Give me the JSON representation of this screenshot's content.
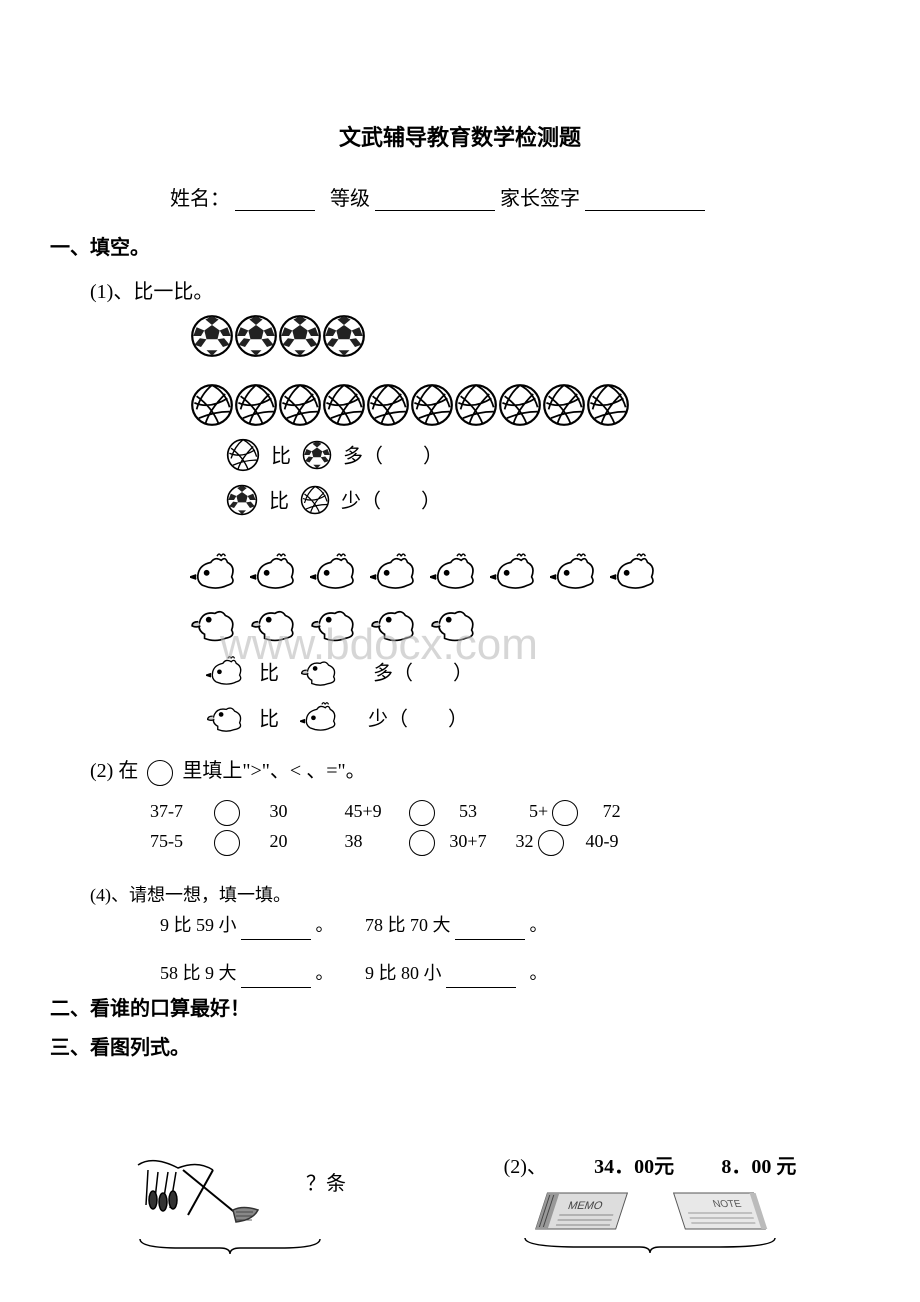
{
  "title": "文武辅导教育数学检测题",
  "info": {
    "name_label": "姓名：",
    "grade_label": "等级",
    "parent_label": "家长签字"
  },
  "sections": {
    "s1": "一、填空。",
    "s1_1": "(1)、比一比。",
    "compare_soccer_vb_more": "多（　　）",
    "compare_soccer_vb_less": "少（　　）",
    "compare_bi": "比",
    "compare_more": "多（　　）",
    "compare_less": "少（　　）",
    "s1_2": "(2)  在",
    "s1_2_tail": "里填上\">\"、< 、=\"。",
    "q2": {
      "r1c1a": "37-7",
      "r1c1b": "30",
      "r1c2a": "45+9",
      "r1c2b": "53",
      "r1c3a": "5+",
      "r1c3b": "72",
      "r2c1a": "75-5",
      "r2c1b": "20",
      "r2c2a": "38",
      "r2c2b": "30+7",
      "r2c3a": "32",
      "r2c3b": "40-9"
    },
    "s1_4": "(4)、请想一想，填一填。",
    "q4": {
      "l1a": "9 比 59 小",
      "l1b": "。",
      "l1c": "78 比 70 大",
      "l1d": "。",
      "l2a": "58 比 9 大",
      "l2b": "。",
      "l2c": "9 比 80 小",
      "l2d": "。"
    },
    "s2": "二、看谁的口算最好！",
    "s3": "三、看图列式。",
    "bottom": {
      "q_tiao": "？条",
      "q2_label": "(2)、",
      "price1": "34．00元",
      "price2": "8．00 元",
      "memo": "MEMO",
      "note": "NOTE"
    }
  },
  "watermark": "www.bdocx.com",
  "counts": {
    "soccer": 4,
    "volleyball": 10,
    "chicken": 8,
    "duck": 5
  },
  "colors": {
    "ink": "#000000",
    "gray": "#555555",
    "light": "#bbbbbb"
  }
}
